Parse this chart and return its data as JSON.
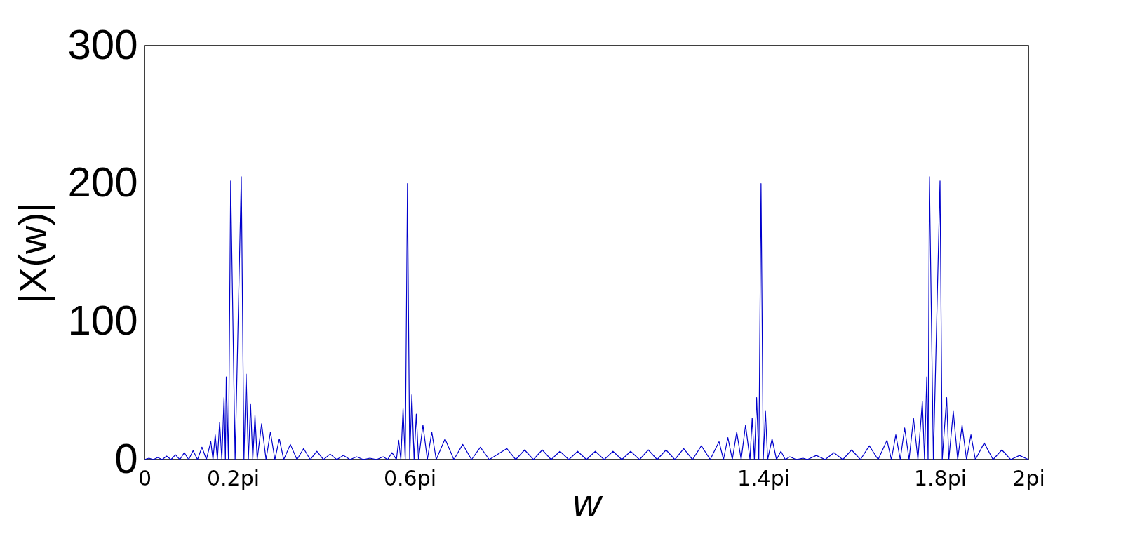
{
  "chart_data": {
    "type": "line",
    "xlabel": "w",
    "ylabel": "|X(w)|",
    "grid": false,
    "marker": "none",
    "line_style": "solid",
    "xlim": [
      0,
      2
    ],
    "ylim": [
      0,
      300
    ],
    "yticks": [
      0,
      100,
      200,
      300
    ],
    "xticks": [
      {
        "value": 0,
        "label": "0"
      },
      {
        "value": 0.2,
        "label": "0.2pi"
      },
      {
        "value": 0.6,
        "label": "0.6pi"
      },
      {
        "value": 1.4,
        "label": "1.4pi"
      },
      {
        "value": 1.8,
        "label": "1.8pi"
      },
      {
        "value": 2,
        "label": "2pi"
      }
    ],
    "series": [
      {
        "color": "#0000cc",
        "x": [
          0.0,
          0.01,
          0.02,
          0.03,
          0.04,
          0.05,
          0.06,
          0.07,
          0.08,
          0.09,
          0.1,
          0.11,
          0.12,
          0.13,
          0.14,
          0.15,
          0.155,
          0.16,
          0.165,
          0.17,
          0.175,
          0.18,
          0.183,
          0.185,
          0.19,
          0.195,
          0.205,
          0.219,
          0.225,
          0.23,
          0.235,
          0.24,
          0.245,
          0.25,
          0.255,
          0.265,
          0.275,
          0.285,
          0.295,
          0.305,
          0.315,
          0.33,
          0.345,
          0.36,
          0.375,
          0.39,
          0.405,
          0.42,
          0.435,
          0.45,
          0.465,
          0.48,
          0.495,
          0.51,
          0.525,
          0.54,
          0.55,
          0.56,
          0.57,
          0.575,
          0.58,
          0.585,
          0.59,
          0.595,
          0.6,
          0.605,
          0.61,
          0.615,
          0.62,
          0.63,
          0.64,
          0.65,
          0.66,
          0.68,
          0.7,
          0.72,
          0.74,
          0.76,
          0.78,
          0.82,
          0.84,
          0.86,
          0.88,
          0.9,
          0.92,
          0.94,
          0.96,
          0.98,
          1.0,
          1.02,
          1.04,
          1.06,
          1.08,
          1.1,
          1.12,
          1.14,
          1.16,
          1.18,
          1.2,
          1.22,
          1.24,
          1.26,
          1.28,
          1.3,
          1.31,
          1.32,
          1.33,
          1.34,
          1.35,
          1.36,
          1.37,
          1.375,
          1.38,
          1.385,
          1.39,
          1.395,
          1.4,
          1.405,
          1.41,
          1.42,
          1.43,
          1.44,
          1.45,
          1.46,
          1.475,
          1.49,
          1.5,
          1.52,
          1.54,
          1.56,
          1.58,
          1.6,
          1.62,
          1.64,
          1.66,
          1.68,
          1.69,
          1.7,
          1.71,
          1.72,
          1.73,
          1.74,
          1.75,
          1.76,
          1.765,
          1.77,
          1.773,
          1.776,
          1.785,
          1.8,
          1.805,
          1.815,
          1.82,
          1.83,
          1.84,
          1.85,
          1.86,
          1.87,
          1.88,
          1.9,
          1.92,
          1.94,
          1.96,
          1.98,
          2.0
        ],
        "values": [
          0,
          1,
          0,
          1.5,
          0,
          2.5,
          0,
          3.5,
          0,
          5,
          0,
          6.5,
          0,
          9,
          0,
          13,
          0,
          18,
          0,
          27,
          0,
          45,
          0,
          60,
          0,
          202,
          0,
          205,
          0,
          62,
          0,
          40,
          0,
          32,
          0,
          26,
          0,
          20,
          0,
          15,
          0,
          11,
          0,
          8,
          0,
          6,
          0,
          4,
          0,
          3,
          0,
          2,
          0,
          1,
          0,
          2,
          0,
          5,
          0,
          14,
          0,
          37,
          0,
          200,
          0,
          47,
          0,
          33,
          0,
          25,
          0,
          20,
          0,
          15,
          0,
          11,
          0,
          9,
          0,
          8,
          0,
          7,
          0,
          7,
          0,
          6,
          0,
          6,
          0,
          6,
          0,
          6,
          0,
          6,
          0,
          7,
          0,
          7,
          0,
          8,
          0,
          10,
          0,
          13,
          0,
          16,
          0,
          20,
          0,
          25,
          0,
          30,
          0,
          45,
          0,
          200,
          0,
          35,
          0,
          15,
          0,
          6,
          0,
          2,
          0,
          1,
          0,
          3,
          0,
          5,
          0,
          7,
          0,
          10,
          0,
          14,
          0,
          18,
          0,
          23,
          0,
          30,
          0,
          42,
          0,
          60,
          0,
          205,
          0,
          202,
          0,
          45,
          0,
          35,
          0,
          25,
          0,
          18,
          0,
          12,
          0,
          7,
          0,
          3,
          0
        ]
      }
    ]
  }
}
